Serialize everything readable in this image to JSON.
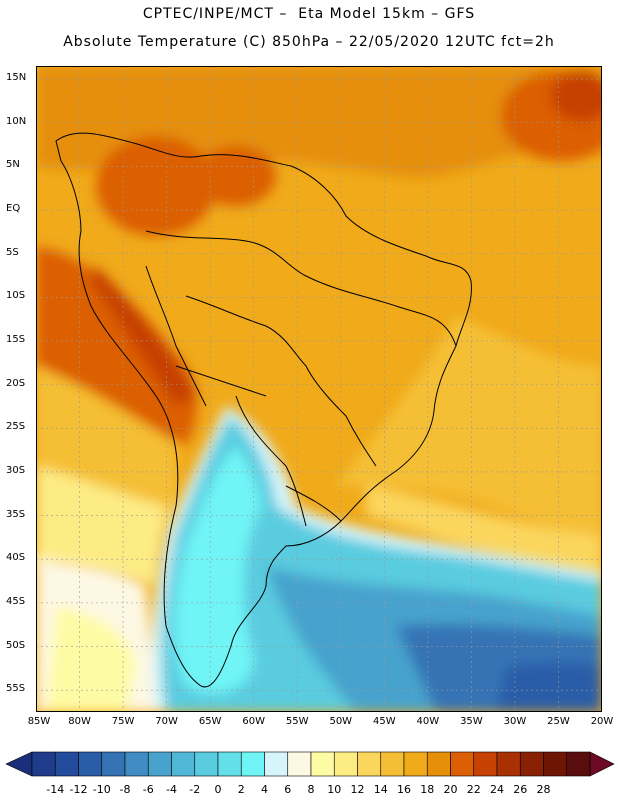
{
  "title": {
    "line1": "CPTEC/INPE/MCT –  Eta Model 15km – GFS",
    "line2": "Absolute Temperature (C) 850hPa – 22/05/2020 12UTC fct=2h"
  },
  "map": {
    "lat_labels": [
      "15N",
      "10N",
      "5N",
      "EQ",
      "5S",
      "10S",
      "15S",
      "20S",
      "25S",
      "30S",
      "35S",
      "40S",
      "45S",
      "50S",
      "55S"
    ],
    "lon_labels": [
      "85W",
      "80W",
      "75W",
      "70W",
      "65W",
      "60W",
      "55W",
      "50W",
      "45W",
      "40W",
      "35W",
      "30W",
      "25W",
      "20W"
    ],
    "extent": {
      "lon_min": -85,
      "lon_max": -20,
      "lat_min": -57.5,
      "lat_max": 16.5
    }
  },
  "colorbar": {
    "labels": [
      "-14",
      "-12",
      "-10",
      "-8",
      "-6",
      "-4",
      "-2",
      "0",
      "2",
      "4",
      "6",
      "8",
      "10",
      "12",
      "14",
      "16",
      "18",
      "20",
      "22",
      "24",
      "26",
      "28"
    ],
    "colors": [
      "#1e3b8c",
      "#234b9c",
      "#2a5da8",
      "#3573b5",
      "#3f8cc2",
      "#47a3cd",
      "#50b8d6",
      "#5acce0",
      "#62dfe8",
      "#6ff4f6",
      "#d6f4fb",
      "#fdf8e3",
      "#fefba5",
      "#fdeb84",
      "#fbd65d",
      "#f5bf35",
      "#f0aa1a",
      "#e58f0b",
      "#dc5f06",
      "#c64104",
      "#a83003",
      "#8a2003",
      "#6e1402",
      "#5a0d0d"
    ],
    "min_color": "#1a2f7a",
    "max_color": "#6b0a24"
  }
}
